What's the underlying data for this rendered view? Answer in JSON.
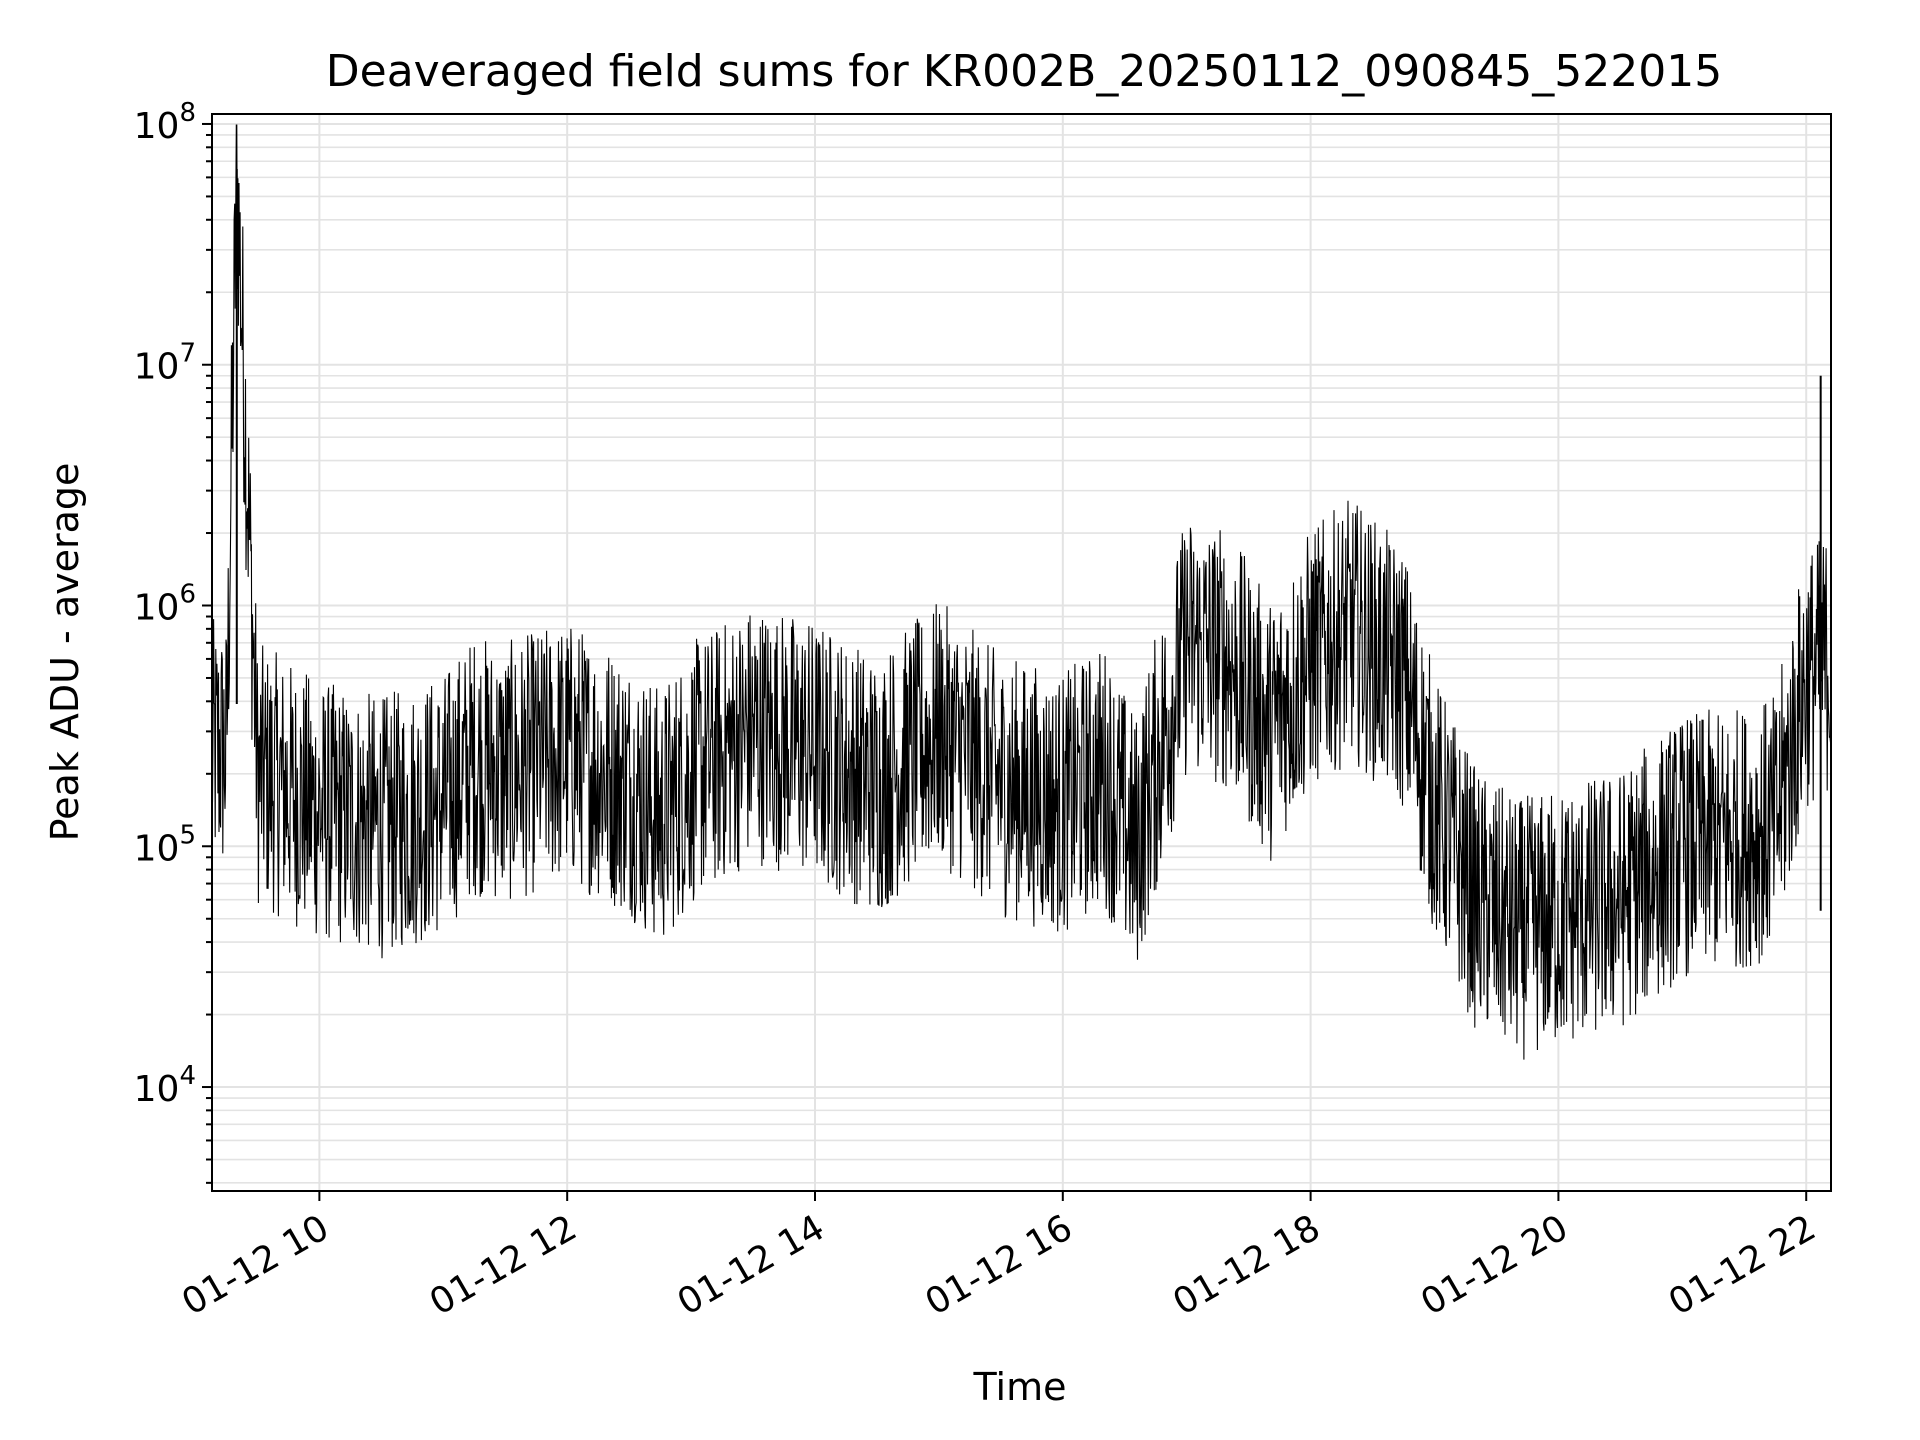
{
  "chart_data": {
    "type": "line",
    "title": "Deaveraged field sums for KR002B_20250112_090845_522015",
    "xlabel": "Time",
    "ylabel": "Peak ADU - average",
    "yscale": "log",
    "ylim": [
      3700,
      110000000
    ],
    "xlim": [
      "2025-01-12 09:08",
      "2025-01-12 22:12"
    ],
    "grid": true,
    "line_color": "#000000",
    "x_ticks": [
      {
        "value": "2025-01-12 10:00",
        "label": "01-12 10"
      },
      {
        "value": "2025-01-12 12:00",
        "label": "01-12 12"
      },
      {
        "value": "2025-01-12 14:00",
        "label": "01-12 14"
      },
      {
        "value": "2025-01-12 16:00",
        "label": "01-12 16"
      },
      {
        "value": "2025-01-12 18:00",
        "label": "01-12 18"
      },
      {
        "value": "2025-01-12 20:00",
        "label": "01-12 20"
      },
      {
        "value": "2025-01-12 22:00",
        "label": "01-12 22"
      }
    ],
    "y_ticks": [
      {
        "value": 10000,
        "base": "10",
        "exp": "4"
      },
      {
        "value": 100000,
        "base": "10",
        "exp": "5"
      },
      {
        "value": 1000000,
        "base": "10",
        "exp": "6"
      },
      {
        "value": 10000000,
        "base": "10",
        "exp": "7"
      },
      {
        "value": 100000000,
        "base": "10",
        "exp": "8"
      }
    ],
    "series": [
      {
        "x": [
          "2025-01-12 09:08",
          "2025-01-12 09:15",
          "2025-01-12 09:20",
          "2025-01-12 09:30",
          "2025-01-12 09:45",
          "2025-01-12 10:00",
          "2025-01-12 10:30",
          "2025-01-12 11:00",
          "2025-01-12 11:15",
          "2025-01-12 11:30",
          "2025-01-12 12:00",
          "2025-01-12 12:30",
          "2025-01-12 12:45",
          "2025-01-12 13:00",
          "2025-01-12 13:30",
          "2025-01-12 14:00",
          "2025-01-12 14:30",
          "2025-01-12 15:00",
          "2025-01-12 15:30",
          "2025-01-12 16:00",
          "2025-01-12 16:20",
          "2025-01-12 16:35",
          "2025-01-12 17:00",
          "2025-01-12 17:20",
          "2025-01-12 17:40",
          "2025-01-12 18:00",
          "2025-01-12 18:20",
          "2025-01-12 18:45",
          "2025-01-12 19:00",
          "2025-01-12 19:20",
          "2025-01-12 19:40",
          "2025-01-12 20:00",
          "2025-01-12 20:30",
          "2025-01-12 21:00",
          "2025-01-12 21:30",
          "2025-01-12 21:45",
          "2025-01-12 22:00",
          "2025-01-12 22:12"
        ],
        "y": [
          250000,
          250000,
          65000000,
          200000,
          170000,
          140000,
          120000,
          150000,
          220000,
          200000,
          250000,
          180000,
          130000,
          200000,
          300000,
          250000,
          180000,
          300000,
          180000,
          150000,
          200000,
          100000,
          700000,
          600000,
          300000,
          600000,
          800000,
          500000,
          150000,
          60000,
          45000,
          50000,
          60000,
          100000,
          110000,
          120000,
          500000,
          600000
        ]
      }
    ],
    "annotations": [
      {
        "x": "2025-01-12 09:20",
        "y": 65000000,
        "label": ""
      },
      {
        "x": "2025-01-12 22:07",
        "y": 9000000,
        "label": ""
      }
    ]
  }
}
